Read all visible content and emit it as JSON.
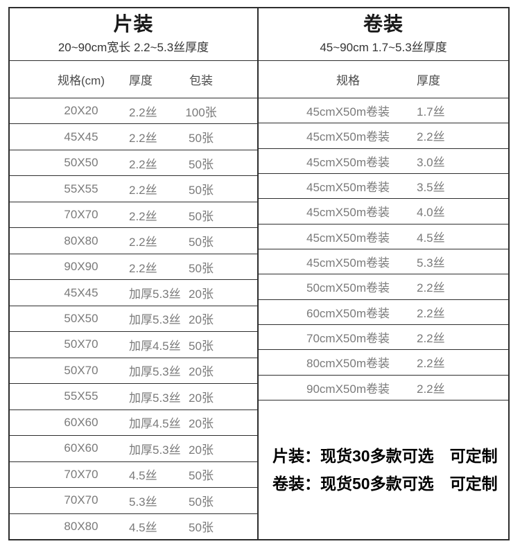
{
  "colors": {
    "background": "#ffffff",
    "border": "#2d2d2d",
    "title_text": "#1a1a1a",
    "header_text": "#4a4a4a",
    "cell_text": "#7a7a7a",
    "note_text": "#000000"
  },
  "left_panel": {
    "title": "片装",
    "subtitle": "20~90cm宽长 2.2~5.3丝厚度",
    "columns": [
      "规格(cm)",
      "厚度",
      "包装"
    ],
    "rows": [
      {
        "spec": "20X20",
        "thickness": "2.2丝",
        "pack": "100张"
      },
      {
        "spec": "45X45",
        "thickness": "2.2丝",
        "pack": "50张"
      },
      {
        "spec": "50X50",
        "thickness": "2.2丝",
        "pack": "50张"
      },
      {
        "spec": "55X55",
        "thickness": "2.2丝",
        "pack": "50张"
      },
      {
        "spec": "70X70",
        "thickness": "2.2丝",
        "pack": "50张"
      },
      {
        "spec": "80X80",
        "thickness": "2.2丝",
        "pack": "50张"
      },
      {
        "spec": "90X90",
        "thickness": "2.2丝",
        "pack": "50张"
      },
      {
        "spec": "45X45",
        "thickness": "加厚5.3丝",
        "pack": "20张"
      },
      {
        "spec": "50X50",
        "thickness": "加厚5.3丝",
        "pack": "20张"
      },
      {
        "spec": "50X70",
        "thickness": "加厚4.5丝",
        "pack": "50张"
      },
      {
        "spec": "50X70",
        "thickness": "加厚5.3丝",
        "pack": "20张"
      },
      {
        "spec": "55X55",
        "thickness": "加厚5.3丝",
        "pack": "20张"
      },
      {
        "spec": "60X60",
        "thickness": "加厚4.5丝",
        "pack": "20张"
      },
      {
        "spec": "60X60",
        "thickness": "加厚5.3丝",
        "pack": "20张"
      },
      {
        "spec": "70X70",
        "thickness": "4.5丝",
        "pack": "50张"
      },
      {
        "spec": "70X70",
        "thickness": "5.3丝",
        "pack": "50张"
      },
      {
        "spec": "80X80",
        "thickness": "4.5丝",
        "pack": "50张"
      }
    ]
  },
  "right_panel": {
    "title": "卷装",
    "subtitle": "45~90cm 1.7~5.3丝厚度",
    "columns": [
      "规格",
      "厚度"
    ],
    "rows": [
      {
        "spec": "45cmX50m卷装",
        "thickness": "1.7丝"
      },
      {
        "spec": "45cmX50m卷装",
        "thickness": "2.2丝"
      },
      {
        "spec": "45cmX50m卷装",
        "thickness": "3.0丝"
      },
      {
        "spec": "45cmX50m卷装",
        "thickness": "3.5丝"
      },
      {
        "spec": "45cmX50m卷装",
        "thickness": "4.0丝"
      },
      {
        "spec": "45cmX50m卷装",
        "thickness": "4.5丝"
      },
      {
        "spec": "45cmX50m卷装",
        "thickness": "5.3丝"
      },
      {
        "spec": "50cmX50m卷装",
        "thickness": "2.2丝"
      },
      {
        "spec": "60cmX50m卷装",
        "thickness": "2.2丝"
      },
      {
        "spec": "70cmX50m卷装",
        "thickness": "2.2丝"
      },
      {
        "spec": "80cmX50m卷装",
        "thickness": "2.2丝"
      },
      {
        "spec": "90cmX50m卷装",
        "thickness": "2.2丝"
      }
    ],
    "note_lines": [
      "片装：现货30多款可选　可定制",
      "卷装：现货50多款可选　可定制"
    ]
  }
}
